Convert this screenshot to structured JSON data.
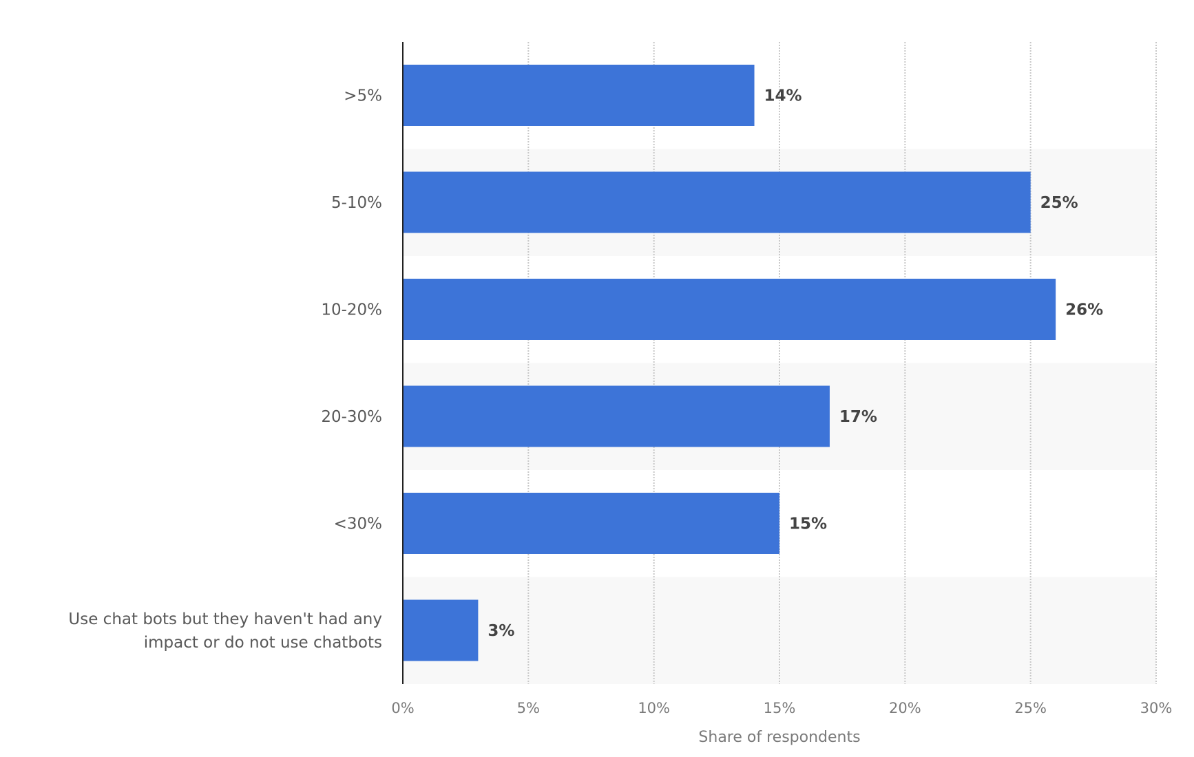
{
  "chart_data": {
    "type": "bar",
    "orientation": "horizontal",
    "categories": [
      ">5%",
      "5-10%",
      "10-20%",
      "20-30%",
      "<30%",
      "Use chat bots but they haven't had any impact or do not use chatbots"
    ],
    "category_lines": [
      [
        ">5%"
      ],
      [
        "5-10%"
      ],
      [
        "10-20%"
      ],
      [
        "20-30%"
      ],
      [
        "<30%"
      ],
      [
        "Use chat bots but they haven't had any",
        "impact or do not use chatbots"
      ]
    ],
    "values": [
      14,
      25,
      26,
      17,
      15,
      3
    ],
    "data_labels": [
      "14%",
      "25%",
      "26%",
      "17%",
      "15%",
      "3%"
    ],
    "xlabel": "Share of respondents",
    "ylabel": "",
    "xlim": [
      0,
      30
    ],
    "x_ticks": [
      0,
      5,
      10,
      15,
      20,
      25,
      30
    ],
    "x_tick_labels": [
      "0%",
      "5%",
      "10%",
      "15%",
      "20%",
      "25%",
      "30%"
    ],
    "grid": "vertical dotted",
    "bar_color": "#3d74d8",
    "band_color": "#f8f8f8"
  }
}
